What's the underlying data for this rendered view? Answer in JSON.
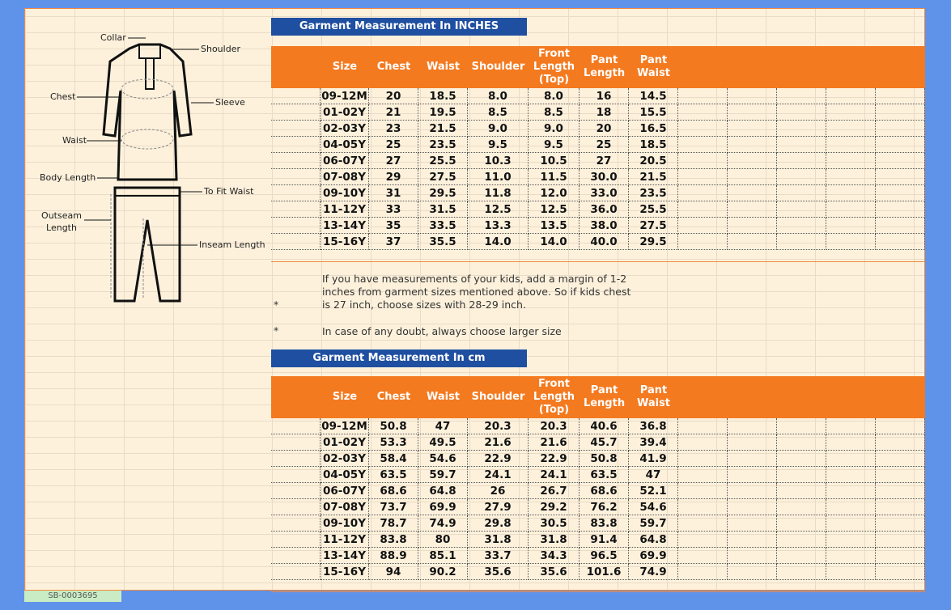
{
  "diagram": {
    "labels": {
      "collar": "Collar",
      "shoulder": "Shoulder",
      "chest": "Chest",
      "sleeve": "Sleeve",
      "waist": "Waist",
      "body_length": "Body Length",
      "to_fit_waist": "To Fit Waist",
      "outseam_length": "Outseam Length",
      "inseam_length": "Inseam Length"
    }
  },
  "tables": [
    {
      "title": "Garment Measurement In INCHES",
      "headers": [
        "Size",
        "Chest",
        "Waist",
        "Shoulder",
        "Front Length (Top)",
        "Pant Length",
        "Pant Waist"
      ],
      "rows": [
        [
          "09-12M",
          "20",
          "18.5",
          "8.0",
          "8.0",
          "16",
          "14.5"
        ],
        [
          "01-02Y",
          "21",
          "19.5",
          "8.5",
          "8.5",
          "18",
          "15.5"
        ],
        [
          "02-03Y",
          "23",
          "21.5",
          "9.0",
          "9.0",
          "20",
          "16.5"
        ],
        [
          "04-05Y",
          "25",
          "23.5",
          "9.5",
          "9.5",
          "25",
          "18.5"
        ],
        [
          "06-07Y",
          "27",
          "25.5",
          "10.3",
          "10.5",
          "27",
          "20.5"
        ],
        [
          "07-08Y",
          "29",
          "27.5",
          "11.0",
          "11.5",
          "30.0",
          "21.5"
        ],
        [
          "09-10Y",
          "31",
          "29.5",
          "11.8",
          "12.0",
          "33.0",
          "23.5"
        ],
        [
          "11-12Y",
          "33",
          "31.5",
          "12.5",
          "12.5",
          "36.0",
          "25.5"
        ],
        [
          "13-14Y",
          "35",
          "33.5",
          "13.3",
          "13.5",
          "38.0",
          "27.5"
        ],
        [
          "15-16Y",
          "37",
          "35.5",
          "14.0",
          "14.0",
          "40.0",
          "29.5"
        ]
      ]
    },
    {
      "title": "Garment Measurement In cm",
      "headers": [
        "Size",
        "Chest",
        "Waist",
        "Shoulder",
        "Front Length (Top)",
        "Pant Length",
        "Pant Waist"
      ],
      "rows": [
        [
          "09-12M",
          "50.8",
          "47",
          "20.3",
          "20.3",
          "40.6",
          "36.8"
        ],
        [
          "01-02Y",
          "53.3",
          "49.5",
          "21.6",
          "21.6",
          "45.7",
          "39.4"
        ],
        [
          "02-03Y",
          "58.4",
          "54.6",
          "22.9",
          "22.9",
          "50.8",
          "41.9"
        ],
        [
          "04-05Y",
          "63.5",
          "59.7",
          "24.1",
          "24.1",
          "63.5",
          "47"
        ],
        [
          "06-07Y",
          "68.6",
          "64.8",
          "26",
          "26.7",
          "68.6",
          "52.1"
        ],
        [
          "07-08Y",
          "73.7",
          "69.9",
          "27.9",
          "29.2",
          "76.2",
          "54.6"
        ],
        [
          "09-10Y",
          "78.7",
          "74.9",
          "29.8",
          "30.5",
          "83.8",
          "59.7"
        ],
        [
          "11-12Y",
          "83.8",
          "80",
          "31.8",
          "31.8",
          "91.4",
          "64.8"
        ],
        [
          "13-14Y",
          "88.9",
          "85.1",
          "33.7",
          "34.3",
          "96.5",
          "69.9"
        ],
        [
          "15-16Y",
          "94",
          "90.2",
          "35.6",
          "35.6",
          "101.6",
          "74.9"
        ]
      ]
    }
  ],
  "notes": [
    {
      "bullet": "*",
      "text": "If you have measurements of your kids, add a margin of 1-2 inches from garment sizes mentioned above. So if kids chest is 27 inch, choose sizes with 28-29 inch."
    },
    {
      "bullet": "*",
      "text": "In case of any doubt, always choose larger size"
    }
  ],
  "footer": {
    "id": "SB-0003695"
  }
}
